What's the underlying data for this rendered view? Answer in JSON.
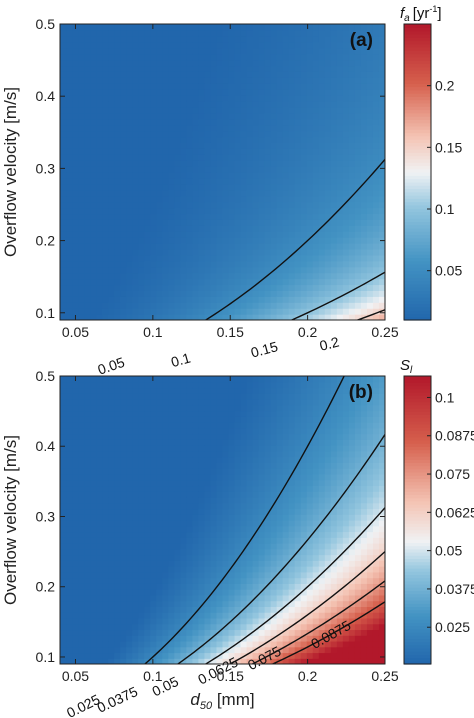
{
  "chart_data": [
    {
      "type": "contour",
      "panel": "(a)",
      "ylabel": "Overflow velocity [m/s]",
      "xlabel": "",
      "xlim": [
        0.04,
        0.25
      ],
      "ylim": [
        0.09,
        0.5
      ],
      "xticks": [
        "0.05",
        "0.1",
        "0.15",
        "0.2",
        "0.25"
      ],
      "yticks": [
        "0.1",
        "0.2",
        "0.3",
        "0.4",
        "0.5"
      ],
      "colorbar": {
        "title_main": "f",
        "title_sub": "a",
        "title_unit": "[yr",
        "title_exp": "-1",
        "title_close": "]",
        "ticks": [
          "0.05",
          "0.1",
          "0.15",
          "0.2"
        ],
        "range": [
          0.01,
          0.25
        ],
        "mid": 0.13
      },
      "contours": [
        {
          "label": "0.05",
          "level": 0.05,
          "k": 0.05
        },
        {
          "label": "0.1",
          "level": 0.1,
          "k": 0.1
        },
        {
          "label": "0.15",
          "level": 0.15,
          "k": 0.15
        },
        {
          "label": "0.2",
          "level": 0.2,
          "k": 0.2
        }
      ]
    },
    {
      "type": "contour",
      "panel": "(b)",
      "ylabel": "Overflow velocity [m/s]",
      "xlabel_main": "d",
      "xlabel_sub": "50",
      "xlabel_unit": " [mm]",
      "xlim": [
        0.04,
        0.25
      ],
      "ylim": [
        0.09,
        0.5
      ],
      "xticks": [
        "0.05",
        "0.1",
        "0.15",
        "0.2",
        "0.25"
      ],
      "yticks": [
        "0.1",
        "0.2",
        "0.3",
        "0.4",
        "0.5"
      ],
      "colorbar": {
        "title_main": "S",
        "title_sub": "l",
        "ticks": [
          "0.025",
          "0.0375",
          "0.05",
          "0.0625",
          "0.075",
          "0.0875",
          "0.1"
        ],
        "range": [
          0.013,
          0.107
        ],
        "mid": 0.053
      },
      "contours": [
        {
          "label": "0.025",
          "level": 0.025,
          "k": 0.025
        },
        {
          "label": "0.0375",
          "level": 0.0375,
          "k": 0.0375
        },
        {
          "label": "0.05",
          "level": 0.05,
          "k": 0.05
        },
        {
          "label": "0.0625",
          "level": 0.0625,
          "k": 0.0625
        },
        {
          "label": "0.075",
          "level": 0.075,
          "k": 0.075
        },
        {
          "label": "0.0875",
          "level": 0.0875,
          "k": 0.0875
        }
      ]
    }
  ]
}
